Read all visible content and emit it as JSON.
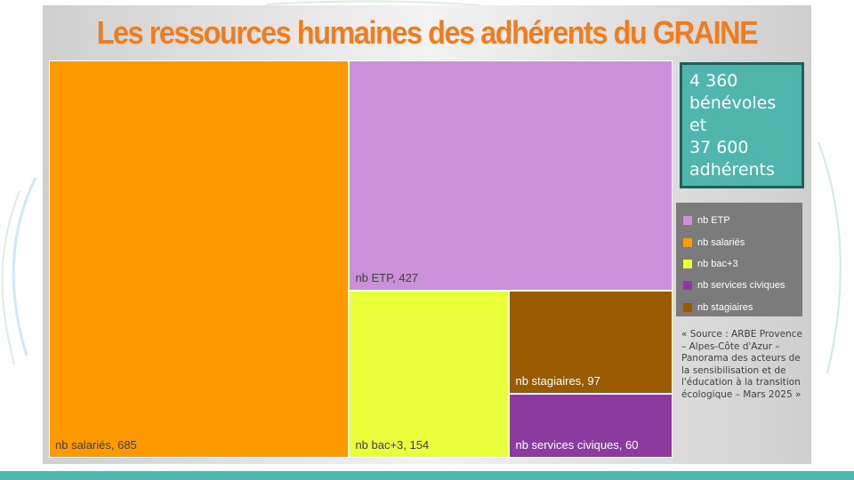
{
  "colors": {
    "title": "#f07c1e",
    "accent": "#4fb5ad"
  },
  "chart_data": {
    "type": "treemap",
    "title": "Les ressources humaines des adhérents du GRAINE",
    "items": [
      {
        "key": "salaries",
        "label": "nb salariés, 685",
        "category": "nb salariés",
        "value": 685,
        "color": "#ff9900",
        "text": "dark"
      },
      {
        "key": "etp",
        "label": "nb ETP, 427",
        "category": "nb ETP",
        "value": 427,
        "color": "#cc8fd9",
        "text": "dark"
      },
      {
        "key": "bac3",
        "label": "nb bac+3, 154",
        "category": "nb bac+3",
        "value": 154,
        "color": "#e9ff3a",
        "text": "dark"
      },
      {
        "key": "stagiaires",
        "label": "nb stagiaires, 97",
        "category": "nb stagiaires",
        "value": 97,
        "color": "#995a00",
        "text": "light"
      },
      {
        "key": "civiques",
        "label": "nb services civiques, 60",
        "category": "nb services civiques",
        "value": 60,
        "color": "#8c39a0",
        "text": "light"
      }
    ],
    "legend": [
      {
        "label": "nb ETP",
        "color": "#cc8fd9"
      },
      {
        "label": "nb salariés",
        "color": "#ff9900"
      },
      {
        "label": "nb bac+3",
        "color": "#e9ff3a"
      },
      {
        "label": "nb services civiques",
        "color": "#8c39a0"
      },
      {
        "label": "nb stagiaires",
        "color": "#995a00"
      }
    ]
  },
  "callout": {
    "lines": [
      "4 360",
      "bénévoles",
      "et",
      "37 600",
      "adhérents"
    ]
  },
  "source": "« Source : ARBE Provence – Alpes-Côte d'Azur – Panorama des acteurs de la sensibilisation et de l'éducation à la transition écologique – Mars 2025 »"
}
